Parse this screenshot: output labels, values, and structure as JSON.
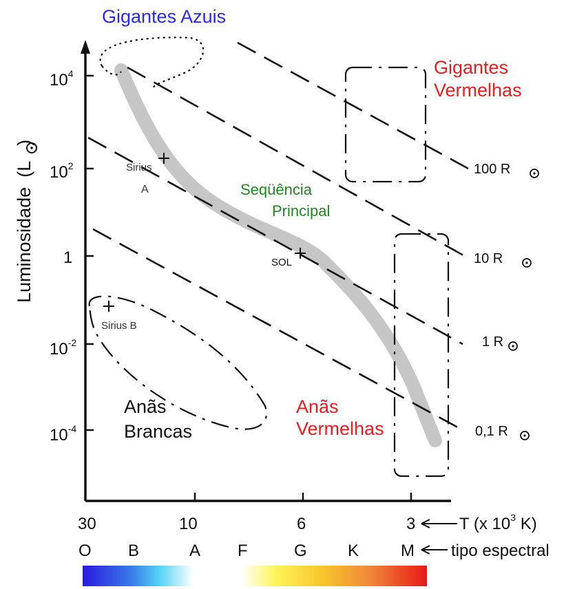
{
  "title_blue_giants": "Gigantes Azuis",
  "red_giants": [
    "Gigantes",
    "Vermelhas"
  ],
  "main_sequence": [
    "Seqüência",
    "Principal"
  ],
  "white_dwarfs": [
    "Anãs",
    "Brancas"
  ],
  "red_dwarfs": [
    "Anãs",
    "Vermelhas"
  ],
  "y_axis": {
    "label": "Luminosidade",
    "unit_open": "(L",
    "unit_close": ")",
    "ticks": [
      {
        "base": "10",
        "exp": "4"
      },
      {
        "base": "10",
        "exp": "2"
      },
      {
        "base": "1",
        "exp": ""
      },
      {
        "base": "10",
        "exp": "-2"
      },
      {
        "base": "10",
        "exp": "-4"
      }
    ]
  },
  "x_axis": {
    "ticks": [
      "30",
      "10",
      "6",
      "3"
    ],
    "label": "T (x 10",
    "label_exp": "3",
    "label_end": " K)"
  },
  "spectral": {
    "classes": [
      "O",
      "B",
      "A",
      "F",
      "G",
      "K",
      "M"
    ],
    "label": "tipo espectral"
  },
  "radius_lines": [
    {
      "value": "100 R"
    },
    {
      "value": "10 R"
    },
    {
      "value": "1 R"
    },
    {
      "value": "0,1 R"
    }
  ],
  "stars": [
    {
      "name": "sirius-a",
      "label_1": "Sirius",
      "label_2": "A"
    },
    {
      "name": "sun",
      "label_1": "SOL"
    },
    {
      "name": "sirius-b",
      "label_1": "Sirius B"
    }
  ],
  "colors": {
    "blue_text": "#2a2aee",
    "red_text": "#ee1c1c",
    "green_text": "#1c8a1c",
    "main_sequence_band": "#c6c6c6",
    "spectral_gradient": [
      "#2a1ae0",
      "#45c8f5",
      "#ffffff",
      "#ffffff",
      "#fff25a",
      "#f8c52a",
      "#f08a3a",
      "#e82020"
    ]
  }
}
